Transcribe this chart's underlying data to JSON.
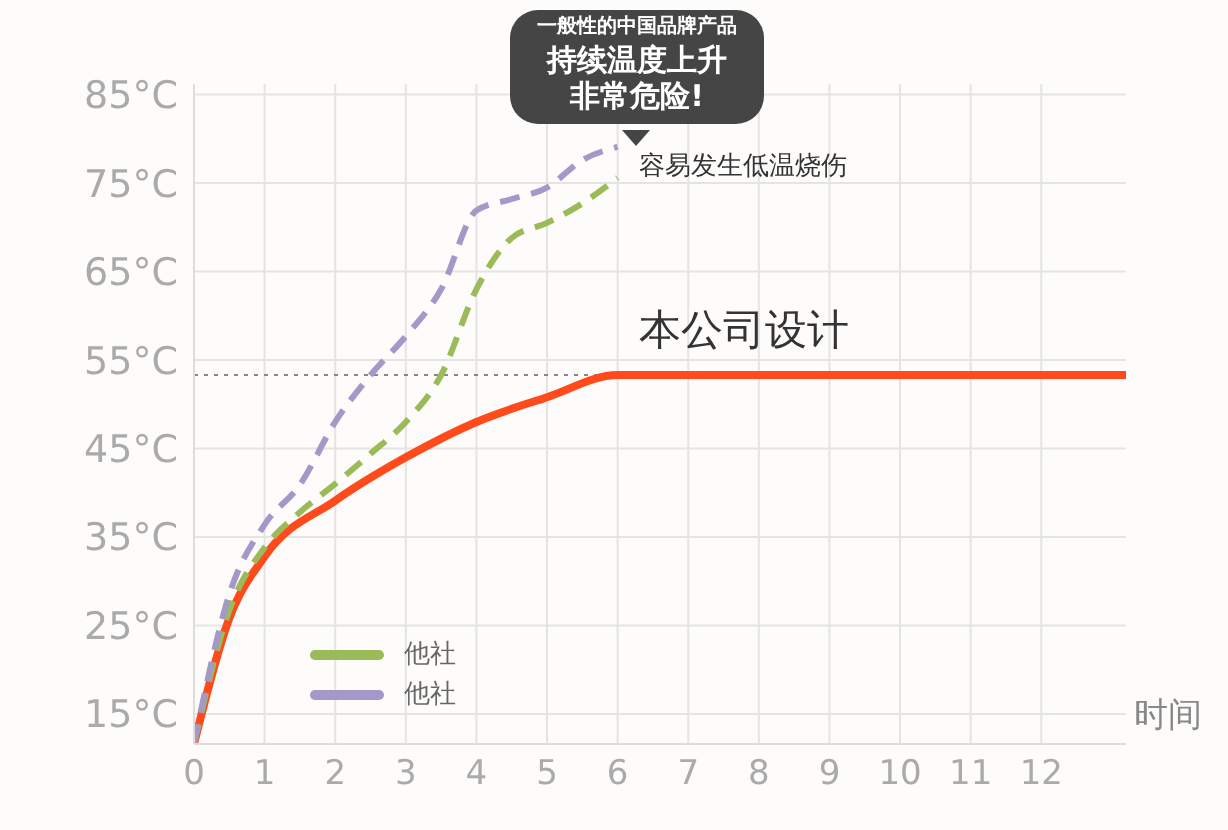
{
  "chart_data": {
    "type": "line",
    "xlabel": "时间",
    "xlim": [
      0,
      13.2
    ],
    "xticks": [
      0,
      1,
      2,
      3,
      4,
      5,
      6,
      7,
      8,
      9,
      10,
      11,
      12
    ],
    "ylim": [
      11.6,
      86.2
    ],
    "yticks": [
      {
        "value": 15,
        "label": "15°C"
      },
      {
        "value": 25,
        "label": "25°C"
      },
      {
        "value": 35,
        "label": "35°C"
      },
      {
        "value": 45,
        "label": "45°C"
      },
      {
        "value": 55,
        "label": "55°C"
      },
      {
        "value": 65,
        "label": "65°C"
      },
      {
        "value": 75,
        "label": "75°C"
      },
      {
        "value": 85,
        "label": "85°C"
      }
    ],
    "grid": true,
    "legend": "bottom left",
    "marker": "none",
    "series": [
      {
        "color": "#ff4a1c",
        "line_style": "solid",
        "x": [
          0,
          0.5,
          1,
          2,
          3,
          4,
          5,
          6,
          13.2
        ],
        "values": [
          11.6,
          25.8,
          32.8,
          39.1,
          44,
          48,
          50.8,
          53.3,
          53.3
        ]
      },
      {
        "name": "他社",
        "color": "#9bbb59",
        "line_style": "dashed",
        "x": [
          0,
          0.5,
          1,
          1.5,
          2,
          2.5,
          3,
          3.5,
          4,
          4.5,
          5,
          5.5,
          6
        ],
        "values": [
          11.6,
          26.7,
          33.8,
          37.8,
          41,
          44.4,
          48,
          53.3,
          63,
          68.8,
          70.5,
          72.7,
          75.6
        ]
      },
      {
        "name": "他社",
        "color": "#a498c8",
        "line_style": "dashed",
        "x": [
          0,
          0.5,
          1,
          1.5,
          2,
          2.5,
          3,
          3.5,
          4,
          4.5,
          5,
          5.5,
          6
        ],
        "values": [
          11.6,
          28.5,
          36.4,
          40.9,
          48,
          53.3,
          57.7,
          63,
          71.9,
          73.2,
          74.5,
          77.6,
          79.1
        ]
      }
    ],
    "ref_lines": [
      {
        "axis": "y",
        "value": 53.3,
        "color": "#888888",
        "line_style": "dotted"
      }
    ],
    "annotations": [
      "一般性的中国品牌产品",
      "持续温度上升",
      "非常危险!",
      "容易发生低温烧伤",
      "本公司设计"
    ]
  }
}
